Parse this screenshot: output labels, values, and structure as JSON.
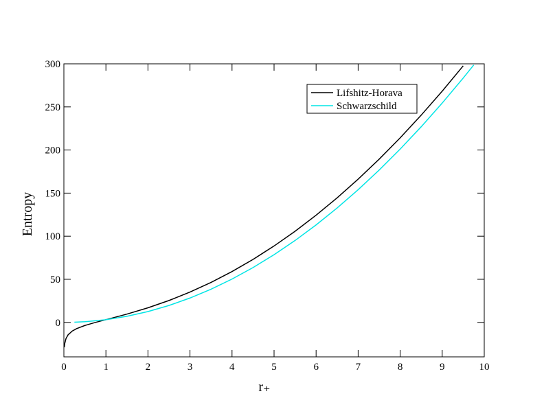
{
  "chart_data": {
    "type": "line",
    "x_label": "r₊",
    "y_label": "Entropy",
    "xlim": [
      0,
      10
    ],
    "xticks": [
      0,
      1,
      2,
      3,
      4,
      5,
      6,
      7,
      8,
      9,
      10
    ],
    "ylim": [
      -40,
      300
    ],
    "yticks": [
      0,
      50,
      100,
      150,
      200,
      250,
      300
    ],
    "legend": "upper right",
    "series": [
      {
        "name": "Lifshitz-Horava",
        "color": "#000000",
        "x": [
          0.01,
          0.02,
          0.05,
          0.1,
          0.2,
          0.3,
          0.5,
          0.75,
          1,
          1.5,
          2,
          2.5,
          3,
          3.5,
          4,
          4.5,
          5,
          5.5,
          6,
          6.5,
          7,
          7.5,
          8,
          8.5,
          9,
          9.5
        ],
        "values": [
          -28.93,
          -24.58,
          -18.82,
          -14.44,
          -9.99,
          -7.28,
          -3.57,
          -0.04,
          3.14,
          9.62,
          16.92,
          25.39,
          35.18,
          46.36,
          58.98,
          73.07,
          88.65,
          105.74,
          124.36,
          144.49,
          166.16,
          189.37,
          214.13,
          240.43,
          268.28,
          297.67
        ]
      },
      {
        "name": "Schwarzschild",
        "color": "#00e5e5",
        "x": [
          0.25,
          0.5,
          1,
          1.5,
          2,
          2.5,
          3,
          3.5,
          4,
          4.5,
          5,
          5.5,
          6,
          6.5,
          7,
          7.5,
          8,
          8.5,
          9,
          9.5,
          9.75
        ],
        "values": [
          0.2,
          0.79,
          3.14,
          7.07,
          12.57,
          19.63,
          28.27,
          38.48,
          50.27,
          63.62,
          78.54,
          95.03,
          113.1,
          132.73,
          153.94,
          176.71,
          201.06,
          226.98,
          254.47,
          283.53,
          298.65
        ]
      }
    ]
  }
}
